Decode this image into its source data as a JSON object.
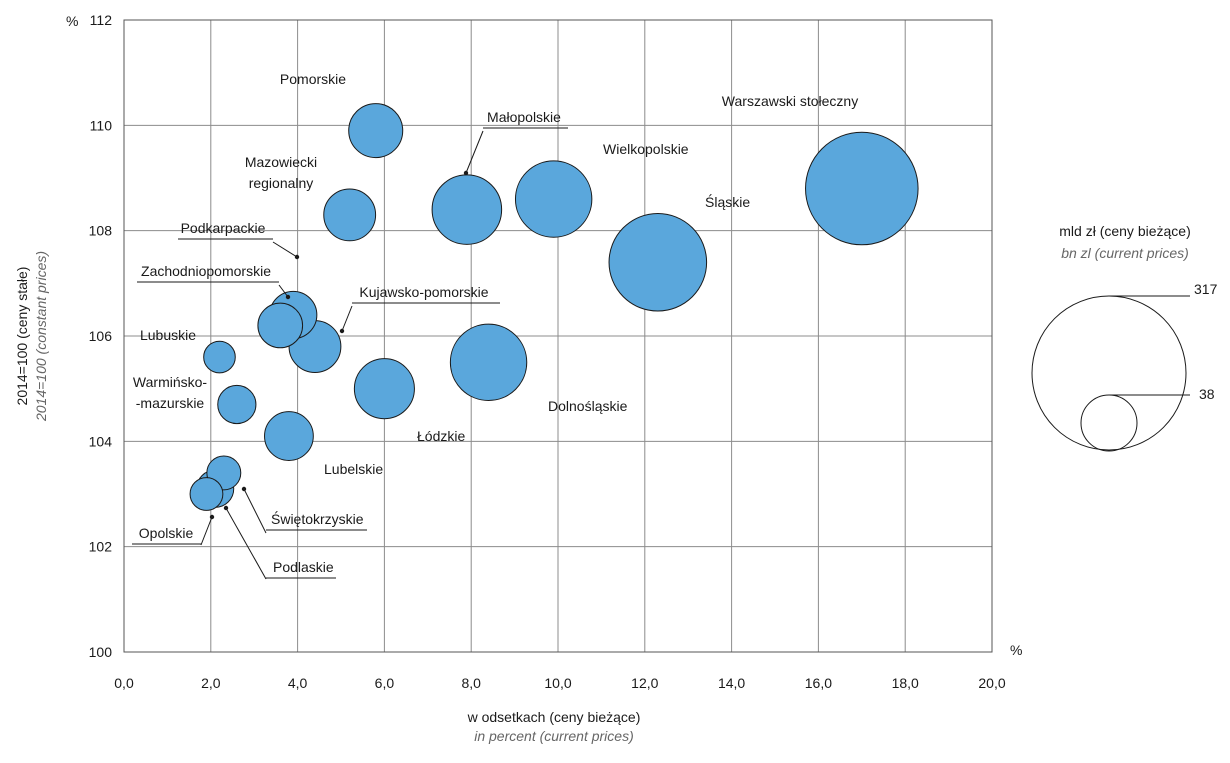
{
  "chart_data": {
    "type": "bubble",
    "x_unit": "%",
    "y_unit": "%",
    "xlabel": "w odsetkach (ceny bieżące)",
    "xlabel_en": "in percent (current prices)",
    "ylabel": "2014=100 (ceny stałe)",
    "ylabel_en": "2014=100 (constant prices)",
    "xlim": [
      0,
      20
    ],
    "ylim": [
      100,
      112
    ],
    "x_ticks": [
      "0,0",
      "2,0",
      "4,0",
      "6,0",
      "8,0",
      "10,0",
      "12,0",
      "14,0",
      "16,0",
      "18,0",
      "20,0"
    ],
    "y_ticks": [
      "100",
      "102",
      "104",
      "106",
      "108",
      "110",
      "112"
    ],
    "grid": true,
    "bubble_color": "#5aa7dc",
    "series": [
      {
        "name": "Pomorskie",
        "x": 5.8,
        "y": 109.9,
        "size": 38
      },
      {
        "name": "Małopolskie",
        "x": 7.9,
        "y": 108.4,
        "size": 63
      },
      {
        "name": "Wielkopolskie",
        "x": 9.9,
        "y": 108.6,
        "size": 76
      },
      {
        "name": "Warszawski stołeczny",
        "x": 17.0,
        "y": 108.8,
        "size": 165
      },
      {
        "name": "Mazowiecki regionalny",
        "x": 5.2,
        "y": 108.3,
        "size": 35
      },
      {
        "name": "Śląskie",
        "x": 12.3,
        "y": 107.4,
        "size": 124
      },
      {
        "name": "Podkarpackie",
        "x": 3.9,
        "y": 106.4,
        "size": 29
      },
      {
        "name": "Zachodniopomorskie",
        "x": 3.6,
        "y": 106.2,
        "size": 26
      },
      {
        "name": "Kujawsko-pomorskie",
        "x": 4.4,
        "y": 105.8,
        "size": 35
      },
      {
        "name": "Lubuskie",
        "x": 2.2,
        "y": 105.6,
        "size": 13
      },
      {
        "name": "Dolnośląskie",
        "x": 8.4,
        "y": 105.5,
        "size": 76
      },
      {
        "name": "Łódzkie",
        "x": 6.0,
        "y": 105.0,
        "size": 47
      },
      {
        "name": "Warmińsko-mazurskie",
        "x": 2.6,
        "y": 104.7,
        "size": 19
      },
      {
        "name": "Lubelskie",
        "x": 3.8,
        "y": 104.1,
        "size": 31
      },
      {
        "name": "Świętokrzyskie",
        "x": 2.3,
        "y": 103.4,
        "size": 15
      },
      {
        "name": "Podlaskie",
        "x": 2.1,
        "y": 103.1,
        "size": 18
      },
      {
        "name": "Opolskie",
        "x": 1.9,
        "y": 103.0,
        "size": 14
      }
    ],
    "size_legend": {
      "title": "mld zł (ceny bieżące)",
      "title_en": "bn zl (current prices)",
      "values": [
        317,
        38
      ]
    }
  }
}
